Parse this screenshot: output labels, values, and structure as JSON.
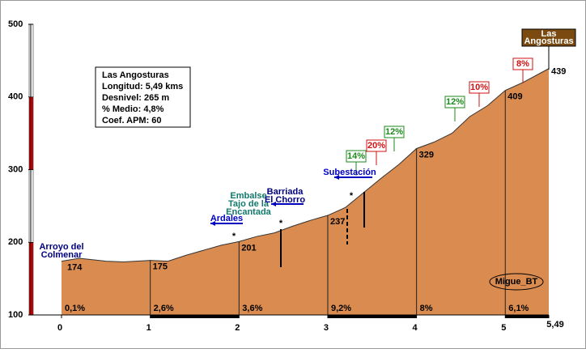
{
  "chart_data": {
    "type": "area",
    "title": "Las Angosturas",
    "info": [
      "Longitud: 5,49 kms",
      "Desnivel: 265 m",
      "% Medio: 4,8%",
      "Coef. APM: 60"
    ],
    "end_label": [
      "Las",
      "Angosturas"
    ],
    "x": [
      0,
      0.2,
      0.5,
      0.7,
      1,
      1.2,
      1.4,
      1.6,
      1.8,
      2,
      2.2,
      2.4,
      2.6,
      2.8,
      3,
      3.2,
      3.4,
      3.6,
      3.8,
      4,
      4.2,
      4.4,
      4.6,
      4.8,
      5,
      5.2,
      5.49
    ],
    "values": [
      174,
      178,
      174,
      173,
      175,
      174,
      182,
      189,
      196,
      201,
      208,
      213,
      222,
      230,
      237,
      248,
      268,
      288,
      307,
      329,
      338,
      350,
      373,
      388,
      409,
      420,
      439
    ],
    "color": "#d98b50",
    "xlim": [
      0,
      5.49
    ],
    "xticks": [
      0,
      1,
      2,
      3,
      4,
      5,
      {
        "value": 5.49,
        "label": "5,49"
      }
    ],
    "ylim": [
      100,
      500
    ],
    "yticks": [
      100,
      200,
      300,
      400,
      500
    ],
    "segment_labels": [
      "0,1%",
      "2,6%",
      "3,6%",
      "9,2%",
      "8%",
      "6,1%"
    ],
    "grade_flags": [
      {
        "label": "14%",
        "color": "#1a8a1a"
      },
      {
        "label": "20%",
        "color": "#d01010"
      },
      {
        "label": "12%",
        "color": "#1a8a1a"
      },
      {
        "label": "12%",
        "color": "#1a8a1a"
      },
      {
        "label": "10%",
        "color": "#d01010"
      },
      {
        "label": "8%",
        "color": "#d01010"
      }
    ],
    "annotations": [
      {
        "lines": [
          "Arroyo del",
          "Colmenar"
        ],
        "color": "#000080"
      },
      {
        "lines": [
          "Ardales"
        ],
        "color": "#0000c0"
      },
      {
        "lines": [
          "Embalse",
          "Tajo de la",
          "Encantada"
        ],
        "color": "#107a6a"
      },
      {
        "lines": [
          "Barriada",
          "El Chorro"
        ],
        "color": "#000080"
      },
      {
        "lines": [
          "Subestación"
        ],
        "color": "#0000c0"
      }
    ],
    "signature": "Migue_BT"
  }
}
